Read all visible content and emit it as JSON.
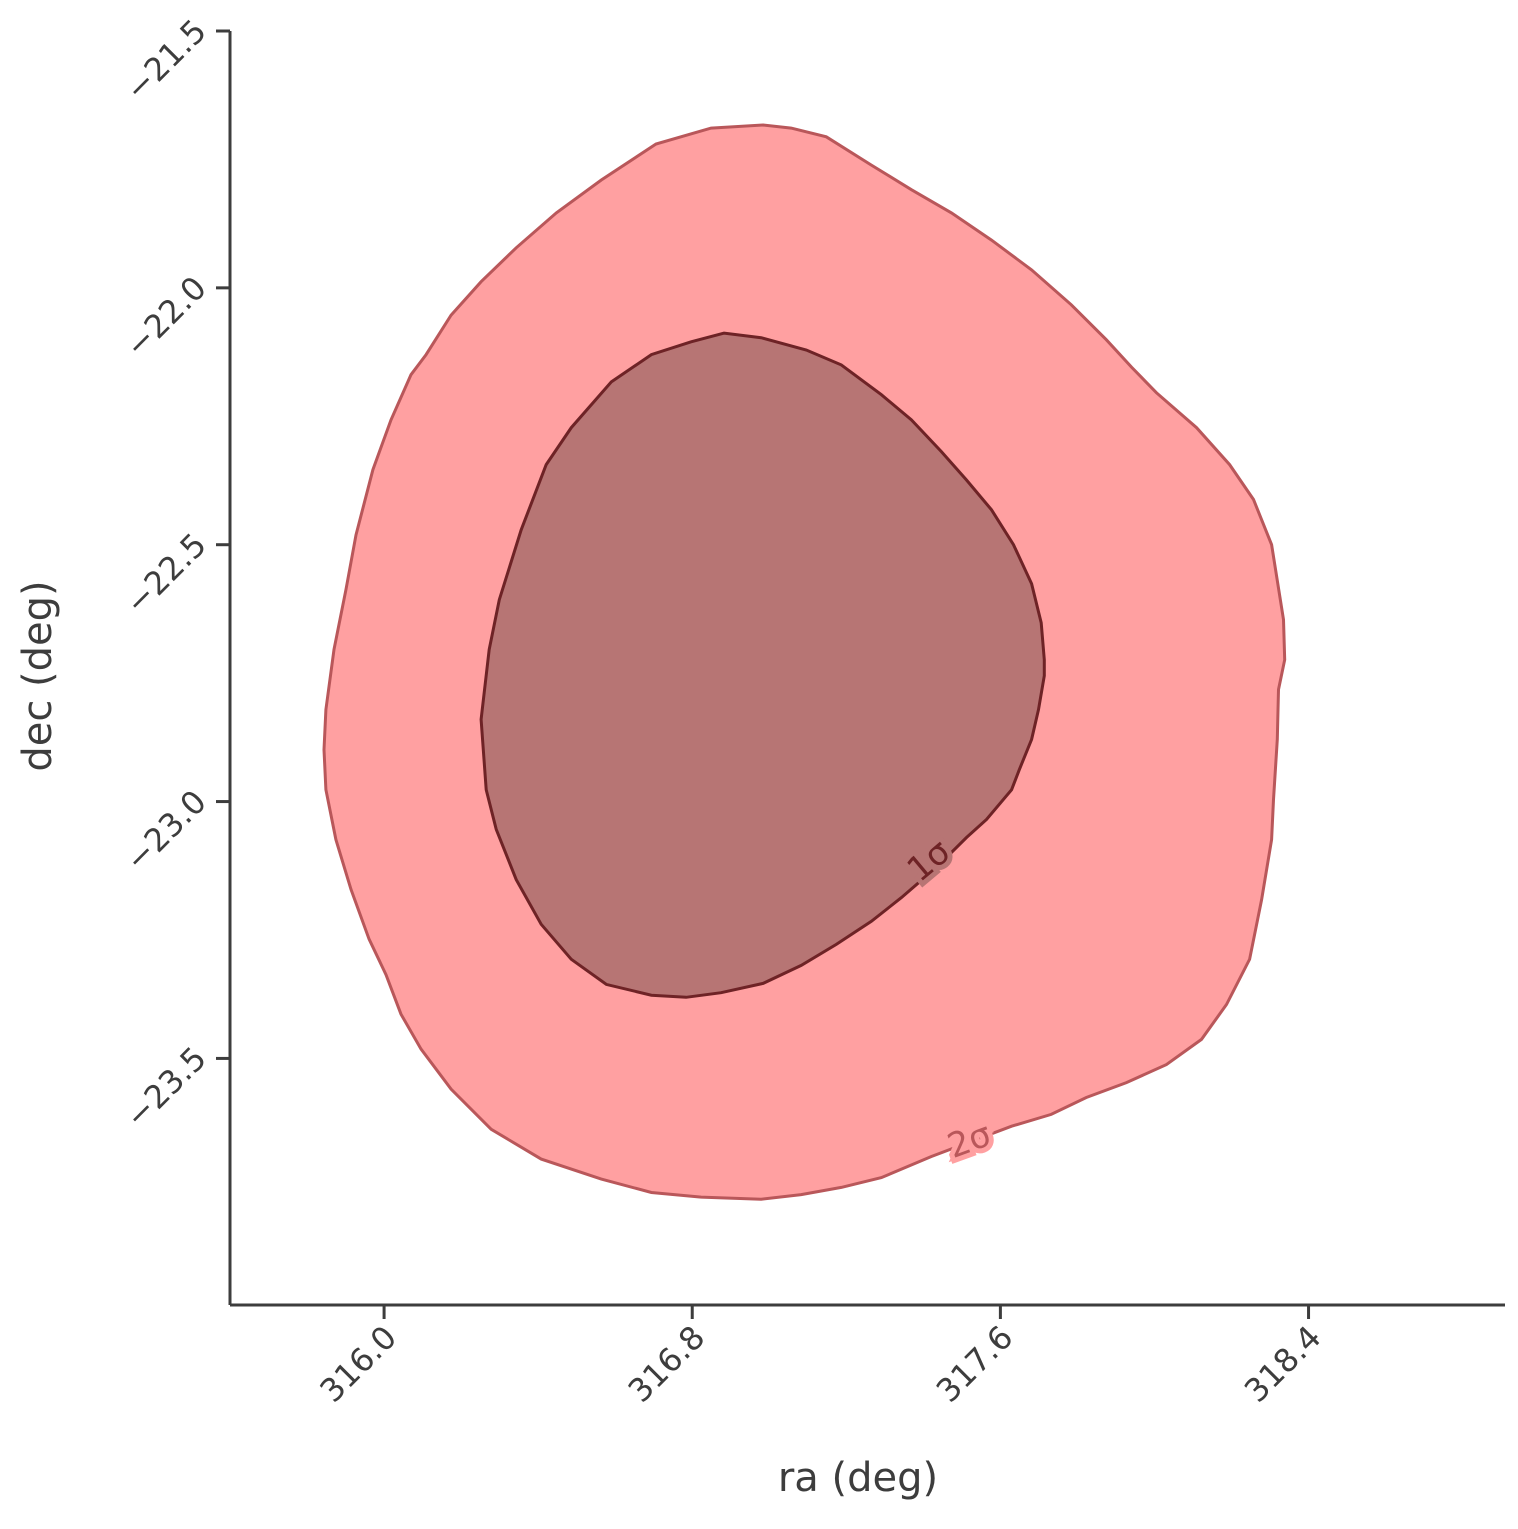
{
  "chart_data": {
    "type": "contour",
    "xlabel": "ra (deg)",
    "ylabel": "dec (deg)",
    "xlim": [
      315.6,
      318.91
    ],
    "ylim": [
      -23.98,
      -21.5
    ],
    "xticks": [
      {
        "value": 316.0,
        "label": "316.0"
      },
      316.8,
      317.6,
      318.4
    ],
    "yticks": [
      {
        "value": -21.5,
        "label": "−21.5"
      },
      {
        "value": -22.0,
        "label": "−22.0"
      },
      {
        "value": -22.5,
        "label": "−22.5"
      },
      {
        "value": -23.0,
        "label": "−23.0"
      },
      {
        "value": -23.5,
        "label": "−23.5"
      }
    ],
    "contours": [
      {
        "label": "2σ",
        "color": "#ffa0a1",
        "edgecolor": "#b9575a",
        "x": [
          316.984,
          316.849,
          316.706,
          316.564,
          316.447,
          316.343,
          316.252,
          316.174,
          316.109,
          316.07,
          316.018,
          315.971,
          315.927,
          315.901,
          315.87,
          315.849,
          315.844,
          315.849,
          315.875,
          315.914,
          315.961,
          316.005,
          316.044,
          316.096,
          316.174,
          316.278,
          316.408,
          316.564,
          316.694,
          316.823,
          316.979,
          317.083,
          317.187,
          317.291,
          317.421,
          317.629,
          317.732,
          317.823,
          317.927,
          318.031,
          318.122,
          318.187,
          318.247,
          318.278,
          318.304,
          318.309,
          318.319,
          318.322,
          318.338,
          318.335,
          318.304,
          318.257,
          318.195,
          318.109,
          318.005,
          317.94,
          317.875,
          317.784,
          317.681,
          317.577,
          317.473,
          317.369,
          317.265,
          317.148,
          317.057
        ],
        "y": [
          -21.683,
          -21.689,
          -21.72,
          -21.79,
          -21.854,
          -21.922,
          -21.988,
          -22.053,
          -22.13,
          -22.169,
          -22.257,
          -22.354,
          -22.481,
          -22.588,
          -22.704,
          -22.821,
          -22.899,
          -22.977,
          -23.074,
          -23.171,
          -23.268,
          -23.337,
          -23.414,
          -23.482,
          -23.56,
          -23.638,
          -23.696,
          -23.735,
          -23.761,
          -23.77,
          -23.774,
          -23.765,
          -23.751,
          -23.732,
          -23.691,
          -23.632,
          -23.609,
          -23.576,
          -23.547,
          -23.512,
          -23.463,
          -23.395,
          -23.307,
          -23.191,
          -23.074,
          -22.996,
          -22.879,
          -22.782,
          -22.724,
          -22.646,
          -22.5,
          -22.412,
          -22.344,
          -22.272,
          -22.204,
          -22.154,
          -22.101,
          -22.033,
          -21.965,
          -21.907,
          -21.854,
          -21.809,
          -21.761,
          -21.706,
          -21.689
        ]
      },
      {
        "label": "1σ",
        "color": "#b77574",
        "edgecolor": "#6e2326",
        "x": [
          316.883,
          316.797,
          316.694,
          316.59,
          316.486,
          316.421,
          316.356,
          316.299,
          316.273,
          316.252,
          316.265,
          316.291,
          316.343,
          316.408,
          316.486,
          316.577,
          316.694,
          316.784,
          316.875,
          316.984,
          317.083,
          317.174,
          317.265,
          317.343,
          317.434,
          317.512,
          317.564,
          317.629,
          317.649,
          317.681,
          317.699,
          317.714,
          317.714,
          317.706,
          317.681,
          317.634,
          317.577,
          317.512,
          317.447,
          317.369,
          317.291,
          317.187,
          317.096,
          316.979
        ],
        "y": [
          -22.088,
          -22.105,
          -22.13,
          -22.183,
          -22.272,
          -22.344,
          -22.471,
          -22.607,
          -22.704,
          -22.84,
          -22.977,
          -23.054,
          -23.152,
          -23.239,
          -23.307,
          -23.356,
          -23.377,
          -23.381,
          -23.372,
          -23.354,
          -23.319,
          -23.278,
          -23.233,
          -23.187,
          -23.128,
          -23.07,
          -23.035,
          -22.977,
          -22.938,
          -22.879,
          -22.821,
          -22.755,
          -22.724,
          -22.652,
          -22.576,
          -22.5,
          -22.432,
          -22.374,
          -22.319,
          -22.257,
          -22.208,
          -22.15,
          -22.121,
          -22.097
        ]
      }
    ]
  }
}
